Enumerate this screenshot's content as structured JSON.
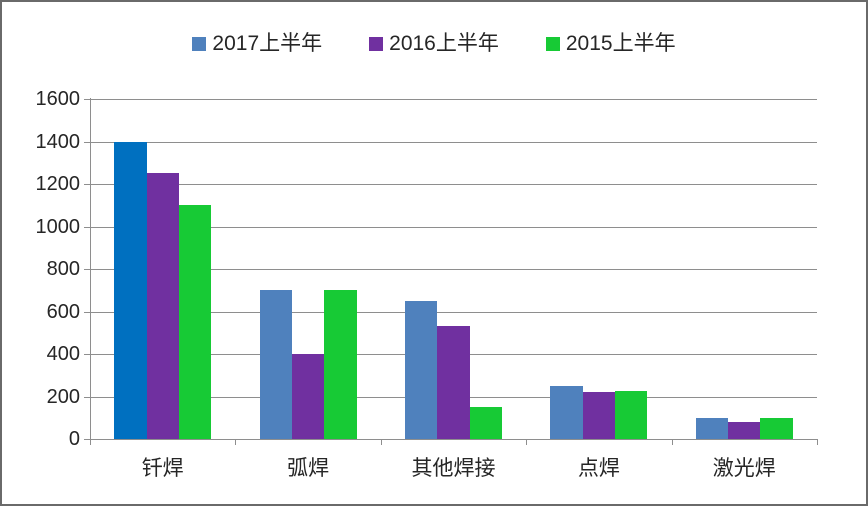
{
  "chart_data": {
    "type": "bar",
    "title": "",
    "xlabel": "",
    "ylabel": "",
    "categories": [
      "钎焊",
      "弧焊",
      "其他焊接",
      "点焊",
      "激光焊"
    ],
    "series": [
      {
        "name": "2017上半年",
        "color": "#4F81BD",
        "values": [
          1400,
          700,
          650,
          250,
          100
        ],
        "color_overrides": {
          "0": "#0070C0"
        }
      },
      {
        "name": "2016上半年",
        "color": "#7030A0",
        "values": [
          1250,
          400,
          530,
          220,
          80
        ]
      },
      {
        "name": "2015上半年",
        "color": "#17CA35",
        "values": [
          1100,
          700,
          150,
          225,
          100
        ]
      }
    ],
    "ylim": [
      0,
      1600
    ],
    "ytick_step": 200,
    "ytick_labels": [
      "0",
      "200",
      "400",
      "600",
      "800",
      "1000",
      "1200",
      "1400",
      "1600"
    ],
    "grid": true,
    "legend_position": "top",
    "colors": {
      "gridline": "#8E8E8E",
      "axis": "#8E8E8E",
      "text": "#262626",
      "frame_border": "#6A6A6A",
      "background": "#FFFFFF"
    }
  }
}
